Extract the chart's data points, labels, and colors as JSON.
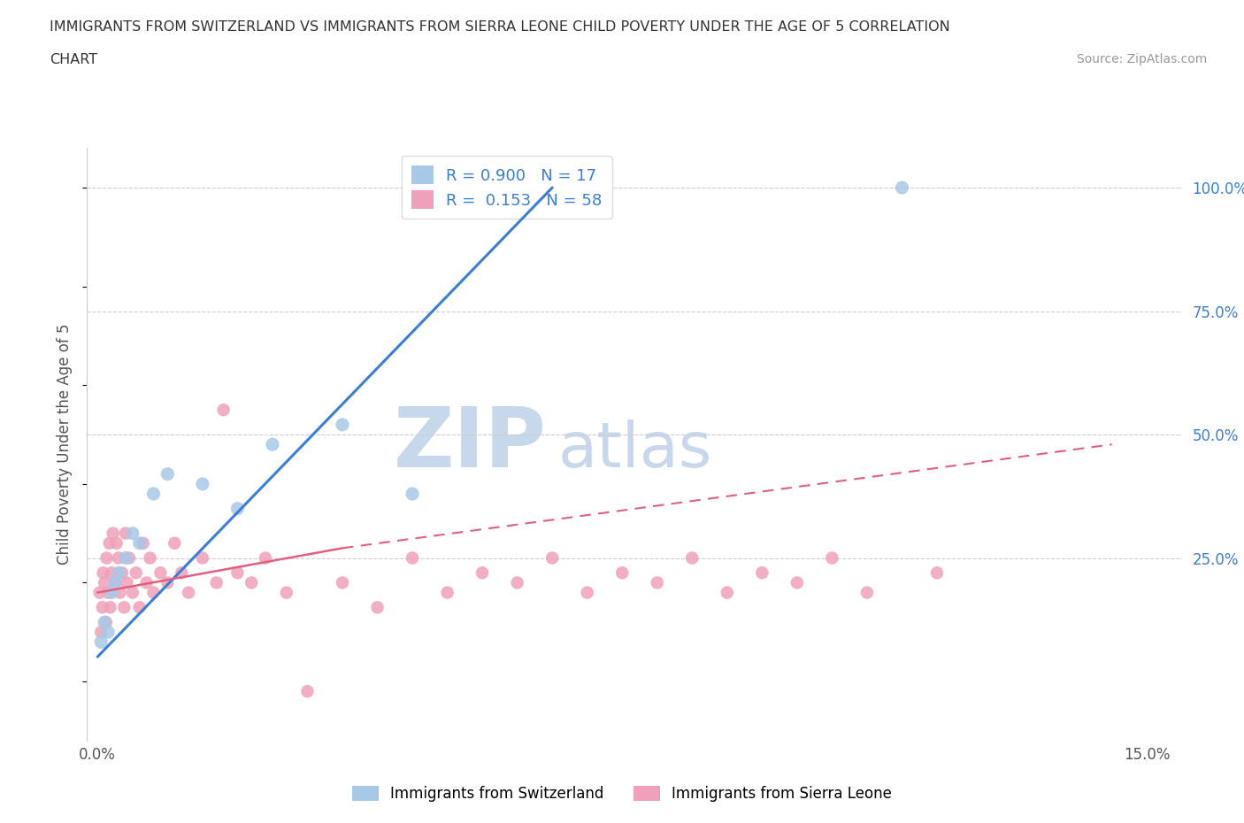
{
  "title_line1": "IMMIGRANTS FROM SWITZERLAND VS IMMIGRANTS FROM SIERRA LEONE CHILD POVERTY UNDER THE AGE OF 5 CORRELATION",
  "title_line2": "CHART",
  "source": "Source: ZipAtlas.com",
  "ylabel": "Child Poverty Under the Age of 5",
  "color_switzerland": "#a8c8e8",
  "color_sierra_leone": "#f0a0b8",
  "regression_color_switzerland": "#3a7fd5",
  "regression_color_sierra_leone": "#e06080",
  "legend_R_switzerland": "0.900",
  "legend_N_switzerland": "17",
  "legend_R_sierra_leone": "0.153",
  "legend_N_sierra_leone": "58",
  "watermark_ZIP": "ZIP",
  "watermark_atlas": "atlas",
  "watermark_color_ZIP": "#c8d8ec",
  "watermark_color_atlas": "#c8d8ec",
  "background_color": "#ffffff",
  "xlim_min": -0.15,
  "xlim_max": 15.5,
  "ylim_min": -12,
  "ylim_max": 108,
  "switzerland_x": [
    0.05,
    0.1,
    0.15,
    0.2,
    0.25,
    0.3,
    0.4,
    0.5,
    0.6,
    0.8,
    1.0,
    1.5,
    2.0,
    2.5,
    3.5,
    4.5,
    11.5
  ],
  "switzerland_y": [
    8,
    12,
    10,
    18,
    20,
    22,
    25,
    30,
    28,
    38,
    42,
    40,
    35,
    48,
    52,
    38,
    100
  ],
  "sierra_leone_x": [
    0.03,
    0.05,
    0.07,
    0.08,
    0.1,
    0.12,
    0.13,
    0.15,
    0.17,
    0.18,
    0.2,
    0.22,
    0.25,
    0.27,
    0.3,
    0.32,
    0.35,
    0.38,
    0.4,
    0.42,
    0.45,
    0.5,
    0.55,
    0.6,
    0.65,
    0.7,
    0.75,
    0.8,
    0.9,
    1.0,
    1.1,
    1.2,
    1.3,
    1.5,
    1.7,
    1.8,
    2.0,
    2.2,
    2.4,
    2.7,
    3.0,
    3.5,
    4.0,
    4.5,
    5.0,
    5.5,
    6.0,
    6.5,
    7.0,
    7.5,
    8.0,
    8.5,
    9.0,
    9.5,
    10.0,
    10.5,
    11.0,
    12.0
  ],
  "sierra_leone_y": [
    18,
    10,
    15,
    22,
    20,
    12,
    25,
    18,
    28,
    15,
    22,
    30,
    20,
    28,
    25,
    18,
    22,
    15,
    30,
    20,
    25,
    18,
    22,
    15,
    28,
    20,
    25,
    18,
    22,
    20,
    28,
    22,
    18,
    25,
    20,
    55,
    22,
    20,
    25,
    18,
    -2,
    20,
    15,
    25,
    18,
    22,
    20,
    25,
    18,
    22,
    20,
    25,
    18,
    22,
    20,
    25,
    18,
    22
  ],
  "sw_reg_x0": 0.0,
  "sw_reg_y0": 5.0,
  "sw_reg_x1": 6.5,
  "sw_reg_y1": 100.0,
  "sl_reg_x0": 0.0,
  "sl_reg_y0": 18.0,
  "sl_reg_x1": 3.5,
  "sl_reg_y1": 27.0,
  "sl_dash_x0": 3.5,
  "sl_dash_y0": 27.0,
  "sl_dash_x1": 14.5,
  "sl_dash_y1": 48.0
}
